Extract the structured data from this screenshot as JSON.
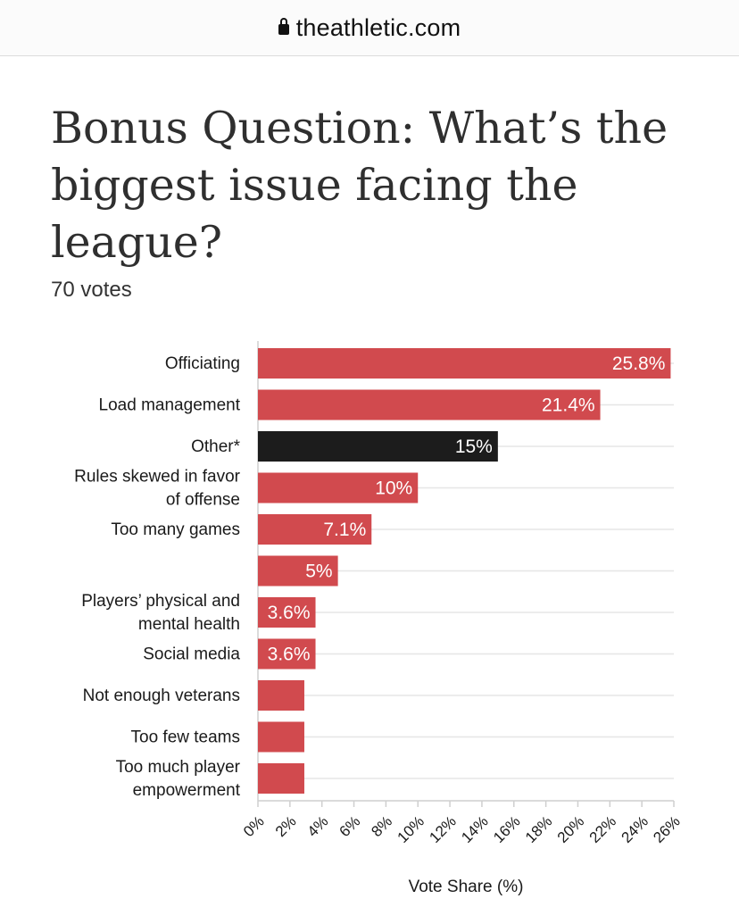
{
  "browser": {
    "url": "theathletic.com",
    "lock_icon": "lock-icon"
  },
  "poll": {
    "title": "Bonus Question: What’s the biggest issue facing the league?",
    "votes": "70 votes"
  },
  "colors": {
    "bar": "#d14a4e",
    "highlight_bar": "#1c1c1c",
    "grid": "#e6e6e6",
    "axis": "#cfcfcf"
  },
  "chart_data": {
    "type": "bar",
    "orientation": "horizontal",
    "xlabel": "Vote Share (%)",
    "xlim": [
      0,
      26
    ],
    "xticks": [
      "0%",
      "2%",
      "4%",
      "6%",
      "8%",
      "10%",
      "12%",
      "14%",
      "16%",
      "18%",
      "20%",
      "22%",
      "24%",
      "26%"
    ],
    "grid": true,
    "categories": [
      [
        "Officiating"
      ],
      [
        "Load management"
      ],
      [
        "Other*"
      ],
      [
        "Rules skewed in favor",
        "of offense"
      ],
      [
        "Too many games"
      ],
      [
        ""
      ],
      [
        "Players’ physical and",
        "mental health"
      ],
      [
        "Social media"
      ],
      [
        "Not enough veterans"
      ],
      [
        "Too few teams"
      ],
      [
        "Too much player",
        "empowerment"
      ]
    ],
    "values": [
      25.8,
      21.4,
      15,
      10,
      7.1,
      5,
      3.6,
      3.6,
      2.9,
      2.9,
      2.9
    ],
    "value_labels": [
      "25.8%",
      "21.4%",
      "15%",
      "10%",
      "7.1%",
      "5%",
      "3.6%",
      "3.6%",
      "",
      "",
      ""
    ],
    "highlight_index": 2
  }
}
